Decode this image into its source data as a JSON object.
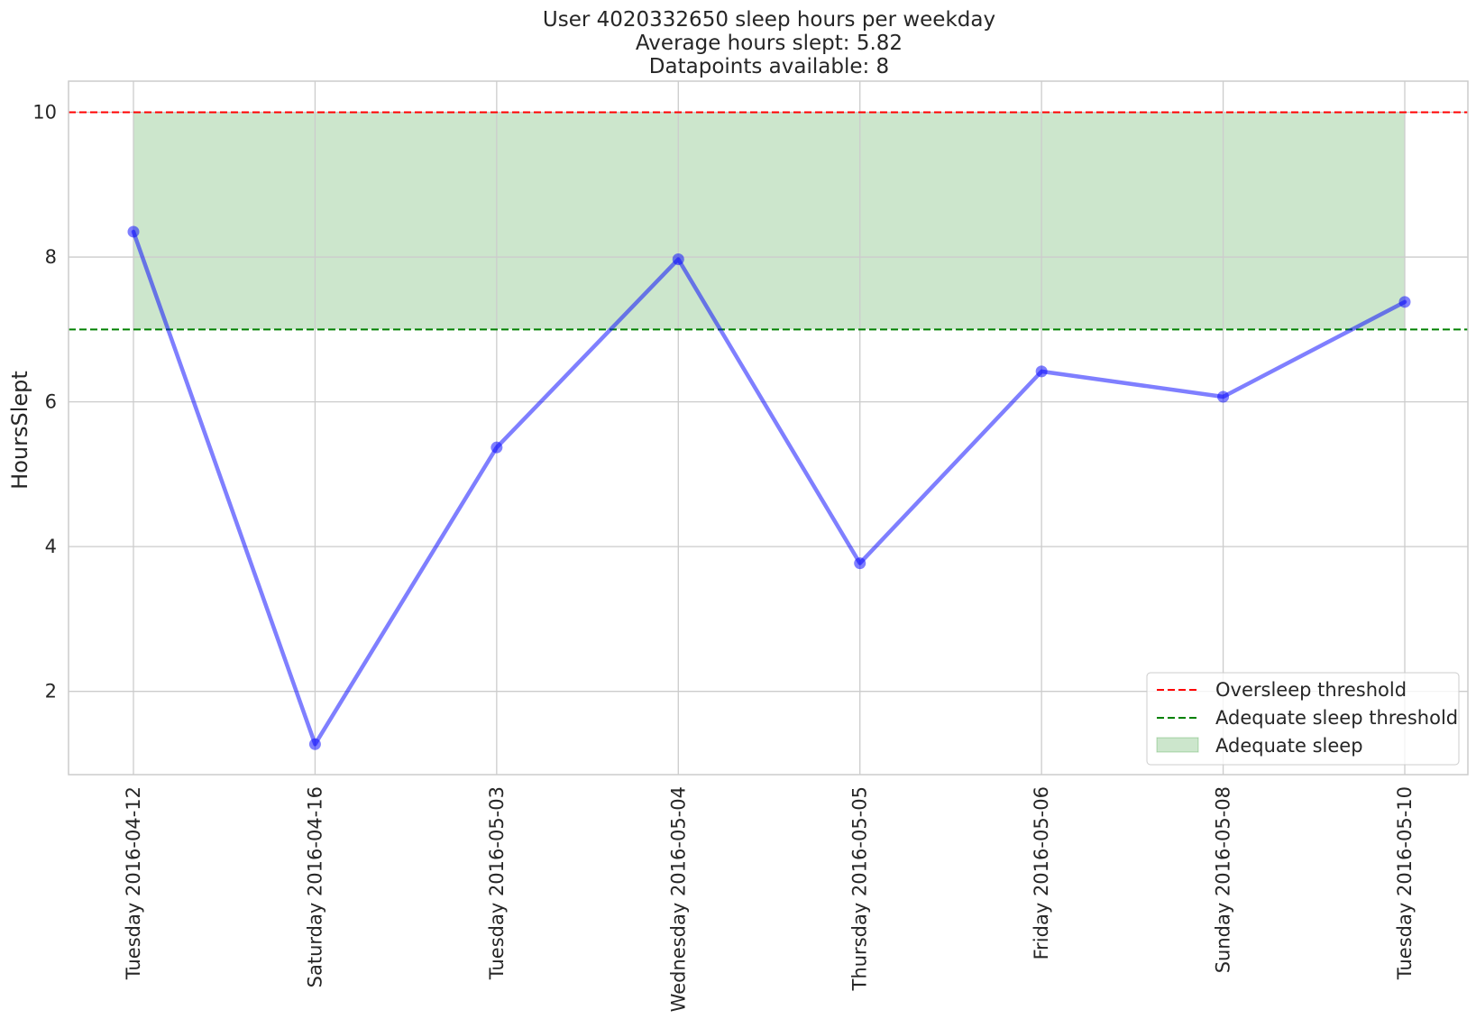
{
  "chart_data": {
    "type": "line",
    "title_lines": [
      "User 4020332650 sleep hours per weekday",
      "Average hours slept: 5.82",
      "Datapoints available: 8"
    ],
    "xlabel": "",
    "ylabel": "HoursSlept",
    "categories": [
      "Tuesday 2016-04-12",
      "Saturday 2016-04-16",
      "Tuesday 2016-05-03",
      "Wednesday 2016-05-04",
      "Thursday 2016-05-05",
      "Friday 2016-05-06",
      "Sunday 2016-05-08",
      "Tuesday 2016-05-10"
    ],
    "series": [
      {
        "values": [
          8.35,
          1.27,
          5.37,
          7.97,
          3.77,
          6.42,
          6.07,
          7.38
        ],
        "color": "#0000ff"
      }
    ],
    "ylim": [
      0.85,
      10.43
    ],
    "yticks": [
      2,
      4,
      6,
      8,
      10
    ],
    "reference_lines": [
      {
        "name": "Oversleep threshold",
        "value": 10,
        "color": "#ff0000",
        "style": "dashed"
      },
      {
        "name": "Adequate sleep threshold",
        "value": 7,
        "color": "#008000",
        "style": "dashed"
      }
    ],
    "band": {
      "name": "Adequate sleep",
      "from": 7,
      "to": 10,
      "color": "#008000"
    },
    "grid": true,
    "legend_position": "bottom-right",
    "legend_labels": [
      "Oversleep threshold",
      "Adequate sleep threshold",
      "Adequate sleep"
    ]
  }
}
